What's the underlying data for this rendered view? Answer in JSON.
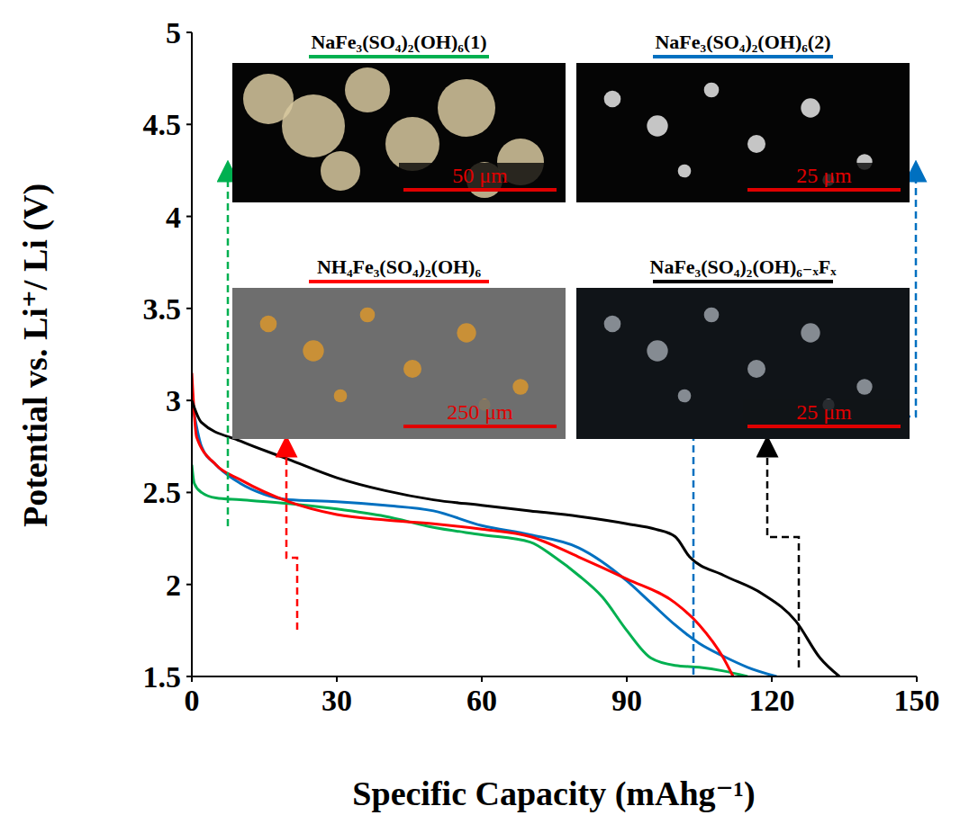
{
  "chart_data": {
    "type": "line",
    "x_label": "Specific Capacity (mAhg⁻¹)",
    "y_label": "Potential vs. Li⁺/ Li (V)",
    "xlim": [
      0,
      150
    ],
    "xticks": [
      0,
      30,
      60,
      90,
      120,
      150
    ],
    "ylim": [
      1.5,
      5
    ],
    "yticks": [
      1.5,
      2,
      2.5,
      3,
      3.5,
      4,
      4.5,
      5
    ],
    "grid": false,
    "series": [
      {
        "name": "NaFe₃(SO₄)₂(OH)₆(1)",
        "color": "#00b050",
        "scale_bar": "50 μm",
        "x": [
          0,
          0.5,
          2,
          5,
          10,
          20,
          30,
          40,
          50,
          60,
          70,
          75,
          80,
          85,
          90,
          95,
          100,
          105,
          110,
          115
        ],
        "values": [
          2.65,
          2.55,
          2.5,
          2.47,
          2.46,
          2.44,
          2.41,
          2.37,
          2.31,
          2.27,
          2.23,
          2.15,
          2.05,
          1.93,
          1.75,
          1.6,
          1.56,
          1.55,
          1.53,
          1.5
        ]
      },
      {
        "name": "NaFe₃(SO₄)₂(OH)₆(2)",
        "color": "#0070c0",
        "scale_bar": "25 μm",
        "x": [
          0,
          2,
          5,
          10,
          15,
          20,
          30,
          40,
          50,
          60,
          70,
          80,
          90,
          95,
          100,
          105,
          110,
          115,
          121
        ],
        "values": [
          3.0,
          2.75,
          2.65,
          2.55,
          2.49,
          2.46,
          2.45,
          2.43,
          2.4,
          2.32,
          2.27,
          2.2,
          2.02,
          1.9,
          1.78,
          1.68,
          1.61,
          1.55,
          1.5
        ]
      },
      {
        "name": "NH₄Fe₃(SO₄)₂(OH)₆",
        "color": "#ff0000",
        "scale_bar": "250 μm",
        "x": [
          0,
          1,
          5,
          10,
          20,
          30,
          40,
          50,
          60,
          70,
          80,
          90,
          100,
          105,
          110,
          112
        ],
        "values": [
          3.15,
          2.8,
          2.65,
          2.57,
          2.45,
          2.38,
          2.35,
          2.33,
          2.3,
          2.26,
          2.15,
          2.03,
          1.9,
          1.78,
          1.6,
          1.5
        ]
      },
      {
        "name": "NaFe₃(SO₄)₂(OH)₆₋ₓFₓ",
        "color": "#000000",
        "scale_bar": "25 μm",
        "x": [
          0,
          2,
          10,
          20,
          30,
          40,
          50,
          60,
          70,
          80,
          90,
          96,
          100,
          103,
          110,
          118,
          125,
          130,
          134
        ],
        "values": [
          3.0,
          2.88,
          2.78,
          2.68,
          2.58,
          2.51,
          2.46,
          2.43,
          2.4,
          2.37,
          2.33,
          2.3,
          2.26,
          2.15,
          2.05,
          1.95,
          1.8,
          1.6,
          1.5
        ]
      }
    ]
  }
}
